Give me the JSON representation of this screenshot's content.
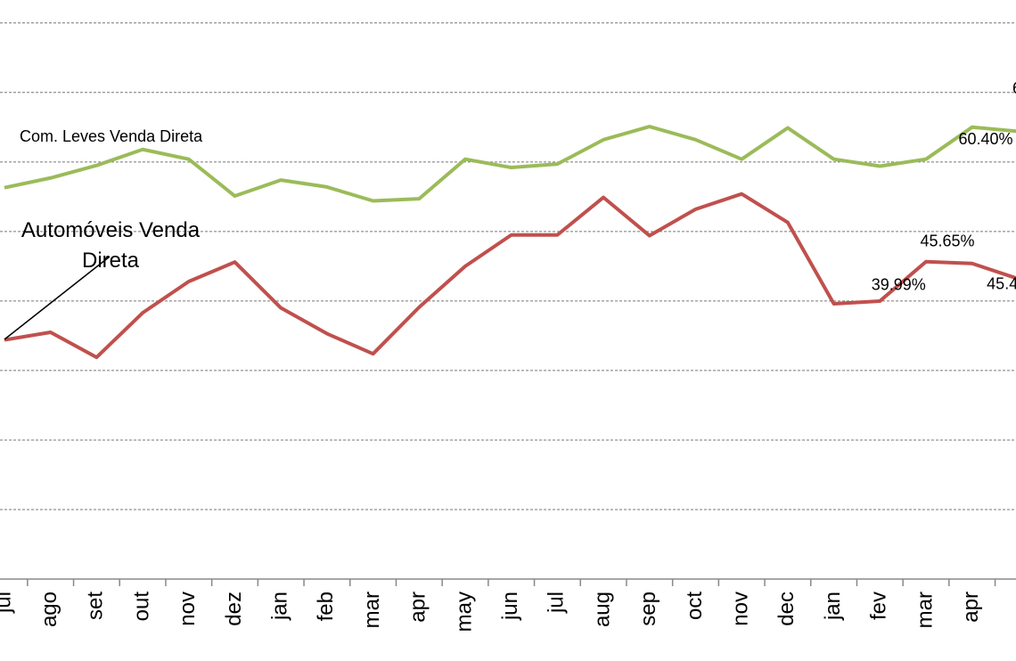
{
  "chart_data": {
    "type": "line",
    "categories": [
      "jul",
      "ago",
      "set",
      "out",
      "nov",
      "dez",
      "jan",
      "feb",
      "mar",
      "apr",
      "may",
      "jun",
      "jul",
      "aug",
      "sep",
      "oct",
      "nov",
      "dec",
      "jan",
      "fev",
      "mar",
      "apr",
      null
    ],
    "series": [
      {
        "name": "Com. Leves Venda Direta",
        "color": "#9bbb59",
        "values": [
          56.3,
          57.7,
          59.5,
          61.8,
          60.4,
          55.1,
          57.4,
          56.4,
          54.4,
          54.7,
          60.4,
          59.2,
          59.7,
          63.2,
          65.1,
          63.2,
          60.4,
          64.9,
          60.4,
          59.4,
          60.4,
          65.0,
          64.4
        ]
      },
      {
        "name": "Automóveis Venda Direta",
        "color": "#c0504d",
        "values": [
          34.4,
          35.5,
          31.9,
          38.3,
          42.8,
          45.6,
          39.0,
          35.3,
          32.4,
          39.1,
          45.0,
          49.5,
          49.5,
          54.9,
          49.4,
          53.2,
          55.4,
          51.3,
          39.6,
          39.99,
          45.65,
          45.4,
          43.2
        ],
        "value_labels": [
          null,
          null,
          null,
          null,
          null,
          null,
          null,
          null,
          null,
          null,
          null,
          null,
          null,
          null,
          null,
          null,
          null,
          null,
          null,
          "39.99%",
          "45.65%",
          "45.4",
          null
        ]
      }
    ],
    "annotations": [
      "60.40%",
      "6"
    ],
    "ylim": [
      0,
      83.3
    ],
    "yticks": [
      10,
      20,
      30,
      40,
      50,
      60,
      70,
      80
    ],
    "grid": true
  }
}
